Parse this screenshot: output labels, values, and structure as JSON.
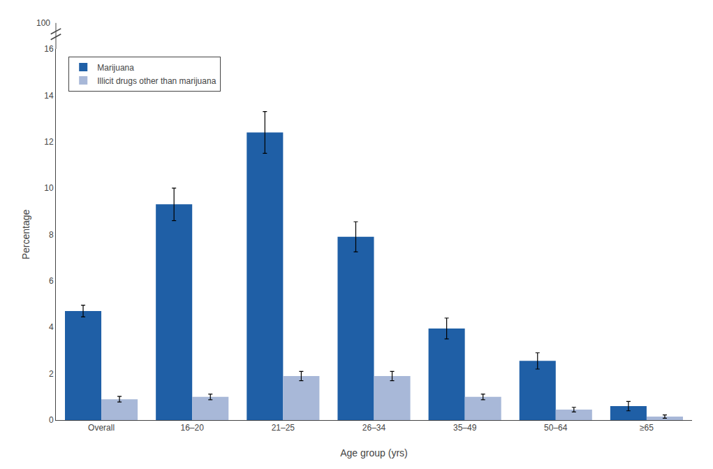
{
  "chart_data": {
    "type": "bar",
    "categories": [
      "Overall",
      "16–20",
      "21–25",
      "26–34",
      "35–49",
      "50–64",
      "≥65"
    ],
    "series": [
      {
        "name": "Marijuana",
        "color": "#1F5FA6",
        "values": [
          4.7,
          9.3,
          12.4,
          7.9,
          3.95,
          2.55,
          0.6
        ],
        "errors": [
          0.25,
          0.7,
          0.9,
          0.65,
          0.45,
          0.35,
          0.2
        ]
      },
      {
        "name": "Illicit drugs other than marijuana",
        "color": "#A8B8D8",
        "values": [
          0.9,
          1.0,
          1.9,
          1.9,
          1.0,
          0.45,
          0.15
        ],
        "errors": [
          0.12,
          0.12,
          0.2,
          0.2,
          0.12,
          0.1,
          0.07
        ]
      }
    ],
    "xlabel": "Age group (yrs)",
    "ylabel": "Percentage",
    "ylim": [
      0,
      16
    ],
    "yticks": [
      0,
      2,
      4,
      6,
      8,
      10,
      12,
      14,
      16
    ],
    "grid": false,
    "legend": "upper left",
    "annotations": [
      "100"
    ]
  }
}
